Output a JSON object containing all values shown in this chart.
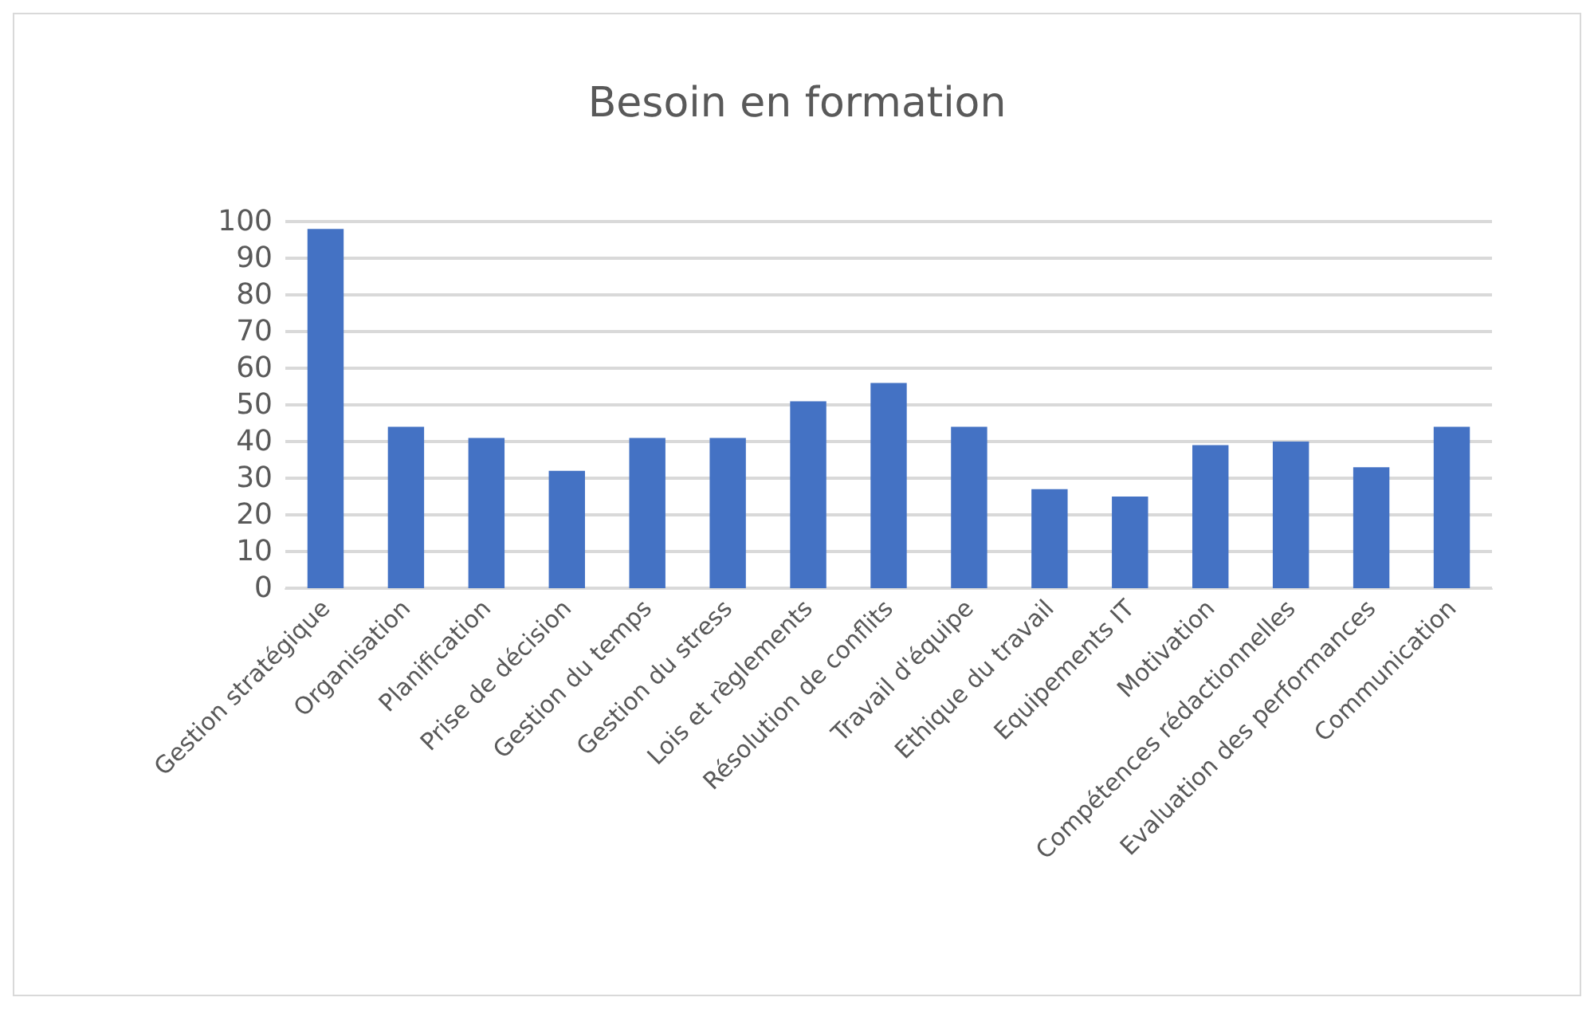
{
  "chart_data": {
    "type": "bar",
    "title": "Besoin en formation",
    "categories": [
      "Gestion stratégique",
      "Organisation",
      "Planification",
      "Prise de décision",
      "Gestion du temps",
      "Gestion du stress",
      "Lois et règlements",
      "Résolution de conflits",
      "Travail d'équipe",
      "Ethique du travail",
      "Equipements IT",
      "Motivation",
      "Compétences rédactionnelles",
      "Evaluation des performances",
      "Communication"
    ],
    "values": [
      98,
      44,
      41,
      32,
      41,
      41,
      51,
      56,
      44,
      27,
      25,
      39,
      40,
      33,
      44
    ],
    "color": "#4472c4",
    "ylim": [
      0,
      100
    ],
    "yticks": [
      0,
      10,
      20,
      30,
      40,
      50,
      60,
      70,
      80,
      90,
      100
    ],
    "grid": "y"
  }
}
